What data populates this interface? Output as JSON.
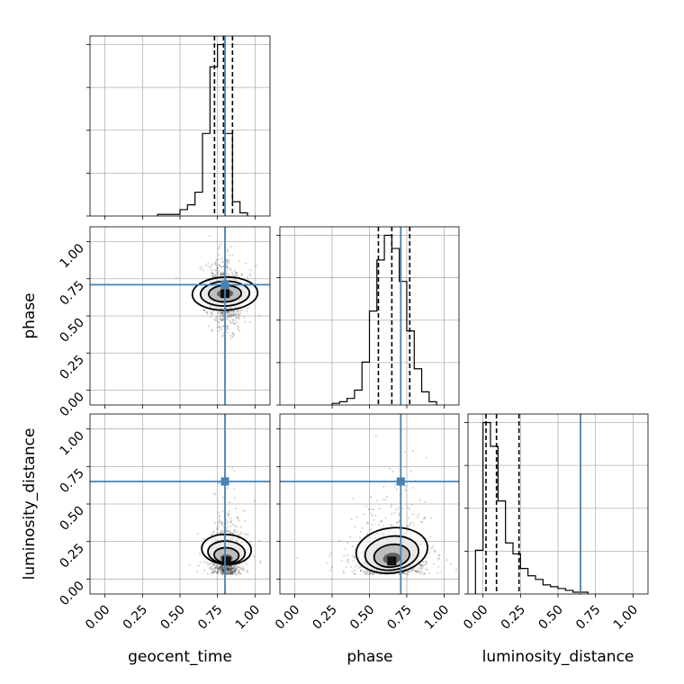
{
  "chart_data": {
    "type": "corner",
    "parameters": [
      "geocent_time",
      "phase",
      "luminosity_distance"
    ],
    "axis_range": [
      -0.1,
      1.1
    ],
    "ticks": [
      0.0,
      0.25,
      0.5,
      0.75,
      1.0
    ],
    "tick_labels": [
      "0.00",
      "0.25",
      "0.50",
      "0.75",
      "1.00"
    ],
    "grid": true,
    "truth_color": "#4682b4",
    "truths": {
      "geocent_time": 0.8,
      "phase": 0.71,
      "luminosity_distance": 0.65
    },
    "histograms": {
      "geocent_time": {
        "bin_edges": [
          0.35,
          0.4,
          0.45,
          0.5,
          0.55,
          0.6,
          0.65,
          0.7,
          0.75,
          0.8,
          0.85,
          0.9,
          0.95
        ],
        "counts": [
          1,
          1,
          1,
          4,
          7,
          15,
          52,
          94,
          108,
          52,
          9,
          2
        ],
        "quantiles": [
          0.73,
          0.79,
          0.85
        ]
      },
      "phase": {
        "bin_edges": [
          0.25,
          0.3,
          0.35,
          0.4,
          0.45,
          0.5,
          0.55,
          0.6,
          0.65,
          0.7,
          0.75,
          0.8,
          0.85,
          0.9,
          0.95
        ],
        "counts": [
          1,
          2,
          4,
          9,
          26,
          57,
          88,
          103,
          95,
          75,
          45,
          22,
          8,
          2
        ],
        "quantiles": [
          0.56,
          0.65,
          0.77
        ]
      },
      "luminosity_distance": {
        "bin_edges": [
          -0.05,
          0.0,
          0.05,
          0.1,
          0.15,
          0.2,
          0.25,
          0.3,
          0.35,
          0.4,
          0.45,
          0.5,
          0.55,
          0.6,
          0.65,
          0.7
        ],
        "counts": [
          24,
          94,
          81,
          51,
          28,
          22,
          14,
          10,
          8,
          5,
          4,
          3,
          2,
          1,
          1
        ],
        "quantiles": [
          0.02,
          0.09,
          0.24
        ]
      }
    },
    "joint_distributions": [
      {
        "x": "geocent_time",
        "y": "phase",
        "mean": [
          0.8,
          0.65
        ],
        "sd": [
          0.055,
          0.11
        ],
        "rho": -0.05
      },
      {
        "x": "geocent_time",
        "y": "luminosity_distance",
        "mean": [
          0.81,
          0.12
        ],
        "sd": [
          0.05,
          0.11
        ],
        "rho": 0.1
      },
      {
        "x": "phase",
        "y": "luminosity_distance",
        "mean": [
          0.65,
          0.12
        ],
        "sd": [
          0.12,
          0.1
        ],
        "rho": 0.05
      }
    ],
    "contour_levels_sigma": [
      0.5,
      1.0,
      1.5,
      2.0
    ]
  }
}
